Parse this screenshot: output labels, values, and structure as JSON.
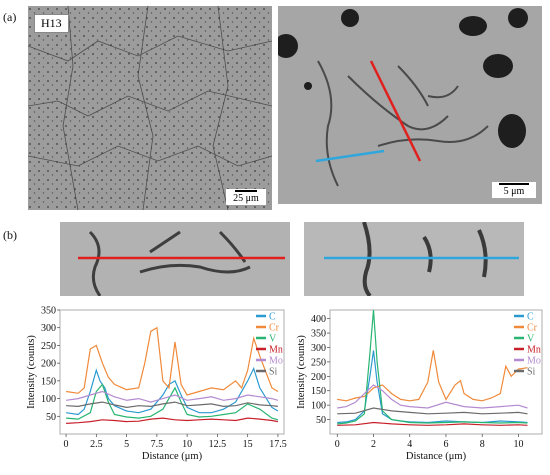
{
  "figure": {
    "panel_a_label": "(a)",
    "panel_b_label": "(b)",
    "micro_left": {
      "tag": "H13",
      "scalebar": "25 μm"
    },
    "micro_right": {
      "scalebar": "5 μm"
    }
  },
  "colors": {
    "red_line": "#e0201e",
    "blue_line": "#2fa6dc",
    "C": "#2b9ad1",
    "Cr": "#f08a3a",
    "V": "#27b571",
    "Mn": "#c8202a",
    "Mo": "#b48ad0",
    "Si": "#6b6b6b"
  },
  "chart_data": [
    {
      "type": "line",
      "xlabel": "Distance (μm)",
      "ylabel": "Intensity (counts)",
      "xlim": [
        -0.5,
        18
      ],
      "ylim": [
        0,
        350
      ],
      "xticks": [
        "0",
        "2.5",
        "5",
        "7.5",
        "10",
        "12.5",
        "15",
        "17.5"
      ],
      "yticks": [
        "50",
        "100",
        "150",
        "200",
        "250",
        "300",
        "350"
      ],
      "legend_position": "top-right",
      "series": [
        {
          "name": "C",
          "x": [
            0,
            1,
            1.5,
            2,
            2.5,
            2.8,
            3.2,
            3.5,
            4,
            5,
            6,
            7,
            8,
            8.5,
            9,
            9.5,
            10,
            11,
            12,
            13,
            14,
            15,
            15.5,
            16,
            17,
            17.5
          ],
          "values": [
            60,
            55,
            70,
            120,
            180,
            150,
            130,
            100,
            80,
            65,
            60,
            70,
            110,
            140,
            150,
            110,
            75,
            60,
            60,
            70,
            90,
            150,
            185,
            130,
            75,
            65
          ]
        },
        {
          "name": "Cr",
          "x": [
            0,
            1,
            1.5,
            2,
            2.5,
            3,
            3.5,
            4,
            5,
            6,
            6.5,
            7,
            7.5,
            8,
            8.5,
            9,
            9.5,
            10,
            11,
            12,
            13,
            14,
            14.5,
            15,
            15.5,
            16,
            17,
            17.5
          ],
          "values": [
            120,
            115,
            130,
            240,
            250,
            200,
            160,
            140,
            125,
            130,
            200,
            290,
            300,
            150,
            130,
            260,
            140,
            110,
            120,
            130,
            125,
            150,
            130,
            180,
            270,
            220,
            130,
            120
          ]
        },
        {
          "name": "V",
          "x": [
            0,
            1,
            2,
            2.5,
            3,
            3.5,
            4,
            5,
            6,
            7,
            8,
            9,
            9.5,
            10,
            11,
            12,
            13,
            14,
            15,
            16,
            17,
            17.5
          ],
          "values": [
            45,
            42,
            60,
            120,
            140,
            90,
            55,
            48,
            45,
            50,
            70,
            130,
            90,
            55,
            48,
            50,
            55,
            60,
            85,
            70,
            45,
            40
          ]
        },
        {
          "name": "Mn",
          "x": [
            0,
            1,
            2,
            3,
            4,
            5,
            6,
            7,
            8,
            9,
            10,
            11,
            12,
            13,
            14,
            15,
            16,
            17,
            17.5
          ],
          "values": [
            30,
            32,
            35,
            40,
            38,
            35,
            36,
            42,
            45,
            40,
            38,
            40,
            42,
            40,
            38,
            45,
            42,
            38,
            35
          ]
        },
        {
          "name": "Mo",
          "x": [
            0,
            1,
            2,
            3,
            4,
            5,
            6,
            7,
            8,
            9,
            10,
            11,
            12,
            13,
            14,
            15,
            16,
            17,
            17.5
          ],
          "values": [
            95,
            100,
            110,
            120,
            105,
            95,
            100,
            90,
            100,
            110,
            95,
            100,
            105,
            95,
            100,
            110,
            105,
            100,
            95
          ]
        },
        {
          "name": "Si",
          "x": [
            0,
            1,
            2,
            3,
            4,
            5,
            6,
            7,
            8,
            9,
            10,
            11,
            12,
            13,
            14,
            15,
            16,
            17,
            17.5
          ],
          "values": [
            80,
            78,
            85,
            90,
            82,
            75,
            80,
            78,
            85,
            90,
            80,
            82,
            85,
            78,
            80,
            88,
            82,
            80,
            78
          ]
        }
      ]
    },
    {
      "type": "line",
      "xlabel": "Distance (μm)",
      "ylabel": "Intensity (counts)",
      "xlim": [
        -0.4,
        11.3
      ],
      "ylim": [
        0,
        430
      ],
      "xticks": [
        "0",
        "2",
        "4",
        "6",
        "8",
        "10"
      ],
      "yticks": [
        "50",
        "100",
        "150",
        "200",
        "250",
        "300",
        "350",
        "400"
      ],
      "legend_position": "top-right",
      "series": [
        {
          "name": "C",
          "x": [
            0,
            0.5,
            1,
            1.5,
            1.8,
            2,
            2.2,
            2.5,
            3,
            3.5,
            4,
            5,
            6,
            7,
            8,
            9,
            10,
            10.5
          ],
          "values": [
            40,
            42,
            50,
            80,
            200,
            290,
            180,
            70,
            50,
            45,
            42,
            40,
            45,
            42,
            40,
            45,
            42,
            40
          ]
        },
        {
          "name": "Cr",
          "x": [
            0,
            0.5,
            1,
            1.5,
            2,
            2.5,
            3,
            3.5,
            4,
            4.5,
            5,
            5.3,
            5.6,
            6,
            6.5,
            6.8,
            7,
            7.5,
            8,
            8.5,
            9,
            9.3,
            9.6,
            10,
            10.5
          ],
          "values": [
            120,
            115,
            125,
            130,
            160,
            170,
            140,
            120,
            115,
            120,
            180,
            290,
            180,
            120,
            170,
            185,
            140,
            120,
            115,
            125,
            140,
            235,
            200,
            225,
            230
          ]
        },
        {
          "name": "V",
          "x": [
            0,
            0.5,
            1,
            1.5,
            1.8,
            2,
            2.2,
            2.5,
            3,
            3.5,
            4,
            5,
            6,
            7,
            8,
            9,
            10,
            10.5
          ],
          "values": [
            35,
            38,
            45,
            70,
            280,
            430,
            250,
            80,
            50,
            45,
            40,
            38,
            40,
            42,
            40,
            38,
            40,
            38
          ]
        },
        {
          "name": "Mn",
          "x": [
            0,
            1,
            2,
            3,
            4,
            5,
            6,
            7,
            8,
            9,
            10,
            10.5
          ],
          "values": [
            30,
            32,
            40,
            35,
            32,
            30,
            32,
            35,
            32,
            30,
            32,
            30
          ]
        },
        {
          "name": "Mo",
          "x": [
            0,
            0.5,
            1,
            1.5,
            2,
            2.5,
            3,
            3.5,
            4,
            5,
            6,
            7,
            8,
            9,
            10,
            10.5
          ],
          "values": [
            90,
            95,
            110,
            140,
            170,
            150,
            120,
            100,
            95,
            90,
            110,
            95,
            90,
            95,
            100,
            90
          ]
        },
        {
          "name": "Si",
          "x": [
            0,
            1,
            2,
            3,
            4,
            5,
            6,
            7,
            8,
            9,
            10,
            10.5
          ],
          "values": [
            70,
            72,
            90,
            80,
            75,
            70,
            72,
            75,
            70,
            72,
            75,
            70
          ]
        }
      ]
    }
  ]
}
